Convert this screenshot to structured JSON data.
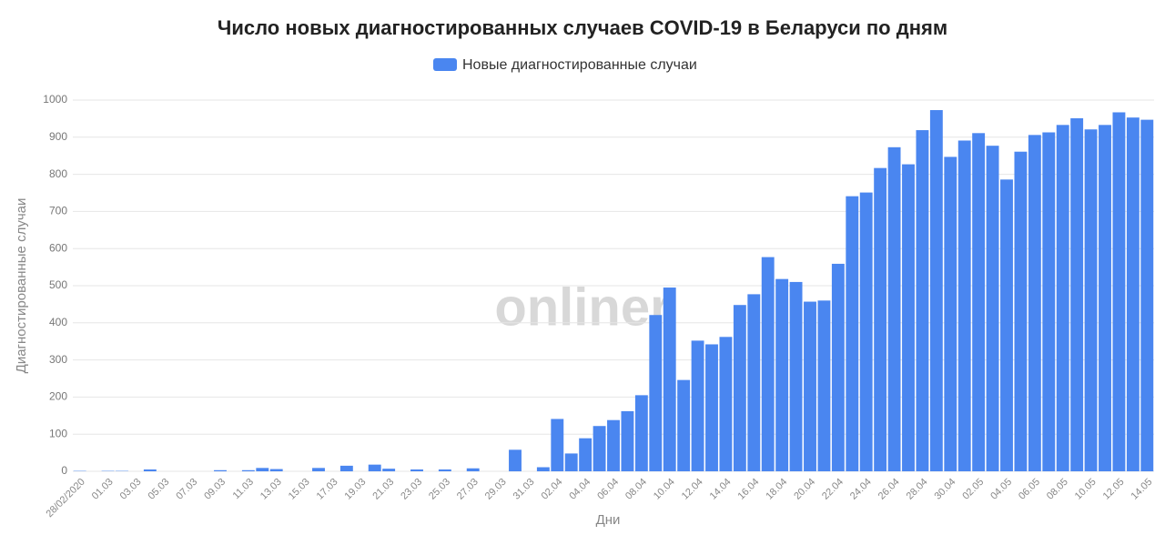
{
  "chart_data": {
    "type": "bar",
    "title": "Число новых диагностированных случаев COVID-19 в Беларуси по дням",
    "x_label": "Дни",
    "y_label": "Диагностированные случаи",
    "watermark": "onliner",
    "series": [
      {
        "name": "Новые диагностированные случаи",
        "color": "#4a86f0",
        "values": [
          1,
          0,
          1,
          1,
          0,
          5,
          0,
          0,
          0,
          0,
          3,
          0,
          3,
          9,
          6,
          0,
          0,
          9,
          0,
          15,
          0,
          18,
          7,
          0,
          5,
          0,
          5,
          0,
          8,
          0,
          0,
          58,
          0,
          11,
          141,
          48,
          89,
          122,
          138,
          162,
          205,
          421,
          495,
          246,
          352,
          342,
          362,
          448,
          477,
          577,
          518,
          510,
          457,
          460,
          559,
          741,
          751,
          817,
          873,
          827,
          919,
          973,
          847,
          891,
          911,
          877,
          786,
          861,
          906,
          913,
          933,
          951,
          921,
          933,
          967,
          953,
          947
        ]
      }
    ],
    "categories": [
      "28/02/2020",
      null,
      "01.03",
      null,
      "03.03",
      null,
      "05.03",
      null,
      "07.03",
      null,
      "09.03",
      null,
      "11.03",
      null,
      "13.03",
      null,
      "15.03",
      null,
      "17.03",
      null,
      "19.03",
      null,
      "21.03",
      null,
      "23.03",
      null,
      "25.03",
      null,
      "27.03",
      null,
      "29.03",
      null,
      "31.03",
      null,
      "02.04",
      null,
      "04.04",
      null,
      "06.04",
      null,
      "08.04",
      null,
      "10.04",
      null,
      "12.04",
      null,
      "14.04",
      null,
      "16.04",
      null,
      "18.04",
      null,
      "20.04",
      null,
      "22.04",
      null,
      "24.04",
      null,
      "26.04",
      null,
      "28.04",
      null,
      "30.04",
      null,
      "02.05",
      null,
      "04.05",
      null,
      "06.05",
      null,
      "08.05",
      null,
      "10.05",
      null,
      "12.05",
      null,
      "14.05"
    ],
    "ylim": [
      0,
      1000
    ],
    "yticks": [
      0,
      100,
      200,
      300,
      400,
      500,
      600,
      700,
      800,
      900,
      1000
    ],
    "grid": true,
    "legend": "top"
  }
}
